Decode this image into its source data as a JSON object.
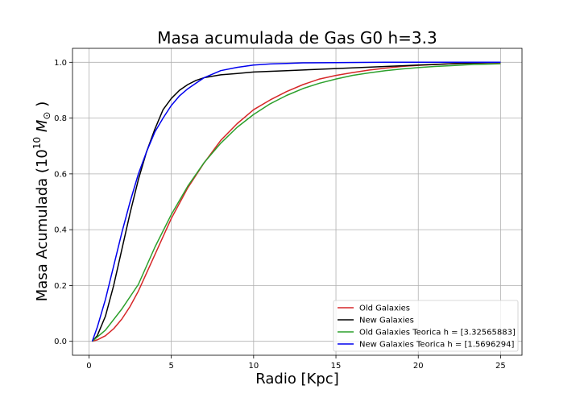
{
  "chart_data": {
    "type": "line",
    "title": "Masa acumulada de Gas G0 h=3.3",
    "xlabel": "Radio [Kpc]",
    "ylabel_prefix": "Masa Acumulada (10",
    "ylabel_exp": "10",
    "ylabel_unit": " M",
    "ylabel_sub": "⊙",
    "ylabel_suffix": " )",
    "xlim": [
      -1,
      26.3
    ],
    "ylim": [
      -0.05,
      1.05
    ],
    "xticks": [
      0,
      5,
      10,
      15,
      20,
      25
    ],
    "yticks": [
      0.0,
      0.2,
      0.4,
      0.6,
      0.8,
      1.0
    ],
    "xtick_labels": [
      "0",
      "5",
      "10",
      "15",
      "20",
      "25"
    ],
    "ytick_labels": [
      "0.0",
      "0.2",
      "0.4",
      "0.6",
      "0.8",
      "1.0"
    ],
    "grid": true,
    "legend_position": "lower-right",
    "series": [
      {
        "name": "Old Galaxies",
        "color": "#d62728",
        "x": [
          0.2,
          0.5,
          1,
          1.5,
          2,
          2.5,
          3,
          3.5,
          4,
          5,
          6,
          7,
          8,
          9,
          10,
          11,
          12,
          13,
          14,
          15,
          16,
          17,
          18,
          19,
          20,
          21,
          22,
          23,
          24,
          25
        ],
        "y": [
          0.0,
          0.005,
          0.02,
          0.045,
          0.08,
          0.125,
          0.18,
          0.245,
          0.31,
          0.44,
          0.55,
          0.64,
          0.72,
          0.78,
          0.83,
          0.865,
          0.895,
          0.92,
          0.94,
          0.953,
          0.963,
          0.972,
          0.979,
          0.985,
          0.989,
          0.992,
          0.995,
          0.997,
          0.998,
          0.999
        ]
      },
      {
        "name": "New Galaxies",
        "color": "#000000",
        "x": [
          0.2,
          0.5,
          1,
          1.5,
          2,
          2.5,
          3,
          3.5,
          4,
          4.5,
          5,
          5.5,
          6,
          6.5,
          7,
          7.5,
          8,
          9,
          10,
          12,
          14,
          16,
          18,
          20,
          22,
          25
        ],
        "y": [
          0.0,
          0.02,
          0.09,
          0.2,
          0.33,
          0.46,
          0.58,
          0.68,
          0.76,
          0.83,
          0.87,
          0.9,
          0.92,
          0.935,
          0.945,
          0.95,
          0.955,
          0.96,
          0.965,
          0.97,
          0.975,
          0.98,
          0.985,
          0.99,
          0.995,
          1.0
        ]
      },
      {
        "name": "Old Galaxies Teorica h = [3.32565883]",
        "color": "#2ca02c",
        "x": [
          0.2,
          1,
          2,
          3,
          4,
          5,
          6,
          7,
          8,
          9,
          10,
          11,
          12,
          13,
          14,
          15,
          16,
          17,
          18,
          19,
          20,
          21,
          22,
          23,
          24,
          25
        ],
        "y": [
          0.0,
          0.04,
          0.116,
          0.204,
          0.337,
          0.454,
          0.556,
          0.641,
          0.71,
          0.767,
          0.813,
          0.851,
          0.881,
          0.906,
          0.925,
          0.94,
          0.953,
          0.962,
          0.97,
          0.976,
          0.981,
          0.985,
          0.988,
          0.991,
          0.993,
          0.995
        ]
      },
      {
        "name": "New Galaxies Teorica h = [1.5696294]",
        "color": "#0000ee",
        "x": [
          0.2,
          0.5,
          1,
          1.5,
          2,
          2.5,
          3,
          3.5,
          4,
          4.5,
          5,
          5.5,
          6,
          6.5,
          7,
          8,
          9,
          10,
          11,
          12,
          13,
          15,
          18,
          20,
          25
        ],
        "y": [
          0.0,
          0.05,
          0.15,
          0.27,
          0.39,
          0.5,
          0.6,
          0.68,
          0.75,
          0.8,
          0.845,
          0.88,
          0.905,
          0.925,
          0.945,
          0.97,
          0.982,
          0.99,
          0.994,
          0.996,
          0.998,
          0.999,
          1.0,
          1.0,
          1.0
        ]
      }
    ]
  }
}
